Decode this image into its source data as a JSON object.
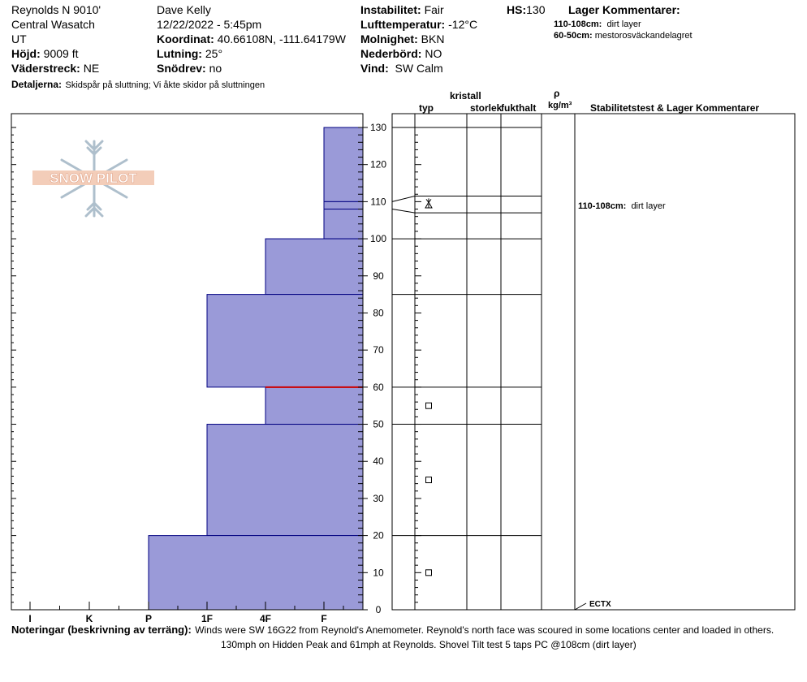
{
  "header": {
    "location": "Reynolds N 9010'",
    "range": "Central Wasatch",
    "state": "UT",
    "elevation_label": "Höjd:",
    "elevation_value": "9009 ft",
    "aspect_label": "Väderstreck:",
    "aspect_value": "NE",
    "details_label": "Detaljerna:",
    "details_value": "Skidspår på sluttning; Vi åkte skidor på sluttningen",
    "observer": "Dave Kelly",
    "datetime": "12/22/2022 - 5:45pm",
    "coords_label": "Koordinat:",
    "coords_value": "40.66108N, -111.64179W",
    "slope_label": "Lutning:",
    "slope_value": "25°",
    "wind_loading_label": "Snödrev:",
    "wind_loading_value": "no",
    "stability_label": "Instabilitet:",
    "stability_value": "Fair",
    "airtemp_label": "Lufttemperatur:",
    "airtemp_value": "-12°C",
    "sky_label": "Molnighet:",
    "sky_value": "BKN",
    "precip_label": "Nederbörd:",
    "precip_value": "NO",
    "wind_label": "Vind:",
    "wind_value": "SW Calm",
    "hs_label": "HS:",
    "hs_value": "130",
    "layer_comments_title": "Lager Kommentarer:",
    "layer_comments": [
      {
        "range": "110-108cm:",
        "text": "dirt layer"
      },
      {
        "range": "60-50cm:",
        "text": "mestorosväckandelagret"
      }
    ]
  },
  "logo": {
    "text": "SNOW PILOT"
  },
  "columns": {
    "crystal_group": "kristall",
    "type": "typ",
    "size": "storlek",
    "moisture": "fukthalt",
    "density_symbol": "ρ",
    "density_unit": "kg/m³",
    "stability": "Stabilitetstest & Lager Kommentarer"
  },
  "notes": {
    "label": "Noteringar (beskrivning av terräng):",
    "line1": "Winds were SW 16G22 from Reynold's Anemometer. Reynold's north face was scoured in some locations center and loaded in others.",
    "line2": "130mph  on Hidden Peak and 61mph at Reynolds.  Shovel Tilt test 5 taps PC @108cm (dirt layer)"
  },
  "chart_data": {
    "type": "bar",
    "title": "",
    "xlabel": "",
    "ylabel": "",
    "x_tick_labels": [
      "I",
      "K",
      "P",
      "1F",
      "4F",
      "F"
    ],
    "hardness_scale": [
      "F",
      "4F",
      "1F",
      "P",
      "K",
      "I"
    ],
    "ylim": [
      0,
      130
    ],
    "y_ticks": [
      0,
      10,
      20,
      30,
      40,
      50,
      60,
      70,
      80,
      90,
      100,
      110,
      120,
      130
    ],
    "layers": [
      {
        "top": 130,
        "bottom": 110,
        "hardness": "F"
      },
      {
        "top": 110,
        "bottom": 108,
        "hardness": "F"
      },
      {
        "top": 108,
        "bottom": 100,
        "hardness": "F"
      },
      {
        "top": 100,
        "bottom": 85,
        "hardness": "4F"
      },
      {
        "top": 85,
        "bottom": 60,
        "hardness": "1F"
      },
      {
        "top": 60,
        "bottom": 50,
        "hardness": "4F"
      },
      {
        "top": 50,
        "bottom": 20,
        "hardness": "1F"
      },
      {
        "top": 20,
        "bottom": 0,
        "hardness": "P"
      }
    ],
    "layer_boundaries": [
      130,
      110,
      108,
      100,
      85,
      60,
      50,
      20
    ],
    "critical_layer": 60,
    "grain_symbols": [
      {
        "depth": 110,
        "symbol": "surface-hoar"
      },
      {
        "depth": 109,
        "symbol": "depth-hoar"
      },
      {
        "depth": 55,
        "symbol": "faceted"
      },
      {
        "depth": 35,
        "symbol": "faceted"
      },
      {
        "depth": 10,
        "symbol": "faceted"
      }
    ],
    "comments": [
      {
        "depth": 109,
        "label": "110-108cm:",
        "text": "dirt layer"
      }
    ],
    "stability_tests": [
      {
        "depth": 0,
        "text": "ECTX"
      }
    ],
    "colors": {
      "fill": "#9a9ad8",
      "edge": "#000080",
      "critical": "#cc0000"
    }
  }
}
